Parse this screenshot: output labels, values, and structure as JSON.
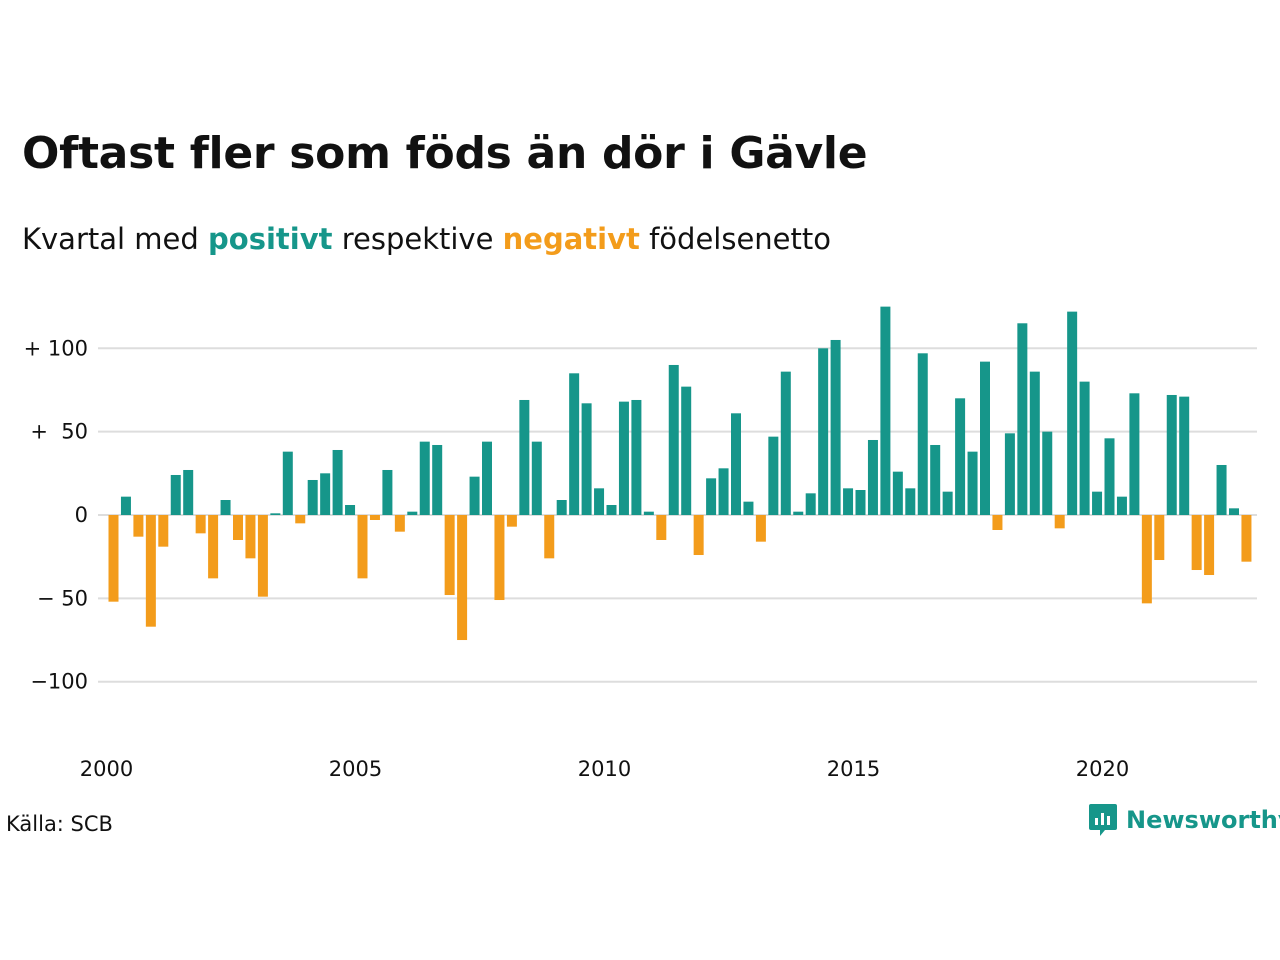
{
  "header": {
    "title": "Oftast fler som föds än dör i Gävle",
    "subtitle_prefix": "Kvartal med",
    "subtitle_positive": "positivt",
    "subtitle_middle": "respektive",
    "subtitle_negative": "negativt",
    "subtitle_suffix": "födelsenetto"
  },
  "footer": {
    "source": "Källa: SCB",
    "brand": "Newsworthy"
  },
  "colors": {
    "positive": "#16968a",
    "negative": "#f39c1b",
    "grid": "#dddddd"
  },
  "chart_data": {
    "type": "bar",
    "title": "Oftast fler som föds än dör i Gävle",
    "subtitle": "Kvartal med positivt respektive negativt födelsenetto",
    "ylim": [
      -140,
      130
    ],
    "grid": true,
    "y_ticks": [
      {
        "value": 100,
        "label": "+ 100"
      },
      {
        "value": 50,
        "label": "+  50"
      },
      {
        "value": 0,
        "label": "0"
      },
      {
        "value": -50,
        "label": "− 50"
      },
      {
        "value": -100,
        "label": "−100"
      }
    ],
    "x_ticks": [
      {
        "value": 2000,
        "label": "2000"
      },
      {
        "value": 2005,
        "label": "2005"
      },
      {
        "value": 2010,
        "label": "2010"
      },
      {
        "value": 2015,
        "label": "2015"
      },
      {
        "value": 2020,
        "label": "2020"
      }
    ],
    "start_year": 2000,
    "categories": [
      "2000 K1",
      "2000 K2",
      "2000 K3",
      "2000 K4",
      "2001 K1",
      "2001 K2",
      "2001 K3",
      "2001 K4",
      "2002 K1",
      "2002 K2",
      "2002 K3",
      "2002 K4",
      "2003 K1",
      "2003 K2",
      "2003 K3",
      "2003 K4",
      "2004 K1",
      "2004 K2",
      "2004 K3",
      "2004 K4",
      "2005 K1",
      "2005 K2",
      "2005 K3",
      "2005 K4",
      "2006 K1",
      "2006 K2",
      "2006 K3",
      "2006 K4",
      "2007 K1",
      "2007 K2",
      "2007 K3",
      "2007 K4",
      "2008 K1",
      "2008 K2",
      "2008 K3",
      "2008 K4",
      "2009 K1",
      "2009 K2",
      "2009 K3",
      "2009 K4",
      "2010 K1",
      "2010 K2",
      "2010 K3",
      "2010 K4",
      "2011 K1",
      "2011 K2",
      "2011 K3",
      "2011 K4",
      "2012 K1",
      "2012 K2",
      "2012 K3",
      "2012 K4",
      "2013 K1",
      "2013 K2",
      "2013 K3",
      "2013 K4",
      "2014 K1",
      "2014 K2",
      "2014 K3",
      "2014 K4",
      "2015 K1",
      "2015 K2",
      "2015 K3",
      "2015 K4",
      "2016 K1",
      "2016 K2",
      "2016 K3",
      "2016 K4",
      "2017 K1",
      "2017 K2",
      "2017 K3",
      "2017 K4",
      "2018 K1",
      "2018 K2",
      "2018 K3",
      "2018 K4",
      "2019 K1",
      "2019 K2",
      "2019 K3",
      "2019 K4",
      "2020 K1",
      "2020 K2",
      "2020 K3",
      "2020 K4",
      "2021 K1",
      "2021 K2",
      "2021 K3",
      "2021 K4",
      "2022 K1",
      "2022 K2",
      "2022 K3",
      "2022 K4",
      "2023 K1"
    ],
    "values": [
      -52,
      11,
      -13,
      -67,
      -19,
      24,
      27,
      -11,
      -38,
      9,
      -15,
      -26,
      -49,
      1,
      38,
      -5,
      21,
      25,
      39,
      6,
      -38,
      -3,
      27,
      -10,
      2,
      44,
      42,
      -48,
      -75,
      23,
      44,
      -51,
      -7,
      69,
      44,
      -26,
      9,
      85,
      67,
      16,
      6,
      68,
      69,
      2,
      -15,
      90,
      77,
      -24,
      22,
      28,
      61,
      8,
      -16,
      47,
      86,
      2,
      13,
      100,
      105,
      16,
      15,
      45,
      125,
      26,
      16,
      97,
      42,
      14,
      70,
      38,
      92,
      -9,
      49,
      115,
      86,
      50,
      -8,
      122,
      80,
      14,
      46,
      11,
      73,
      -53,
      -27,
      72,
      71,
      -33,
      -36,
      30,
      4,
      -28,
      0
    ]
  }
}
